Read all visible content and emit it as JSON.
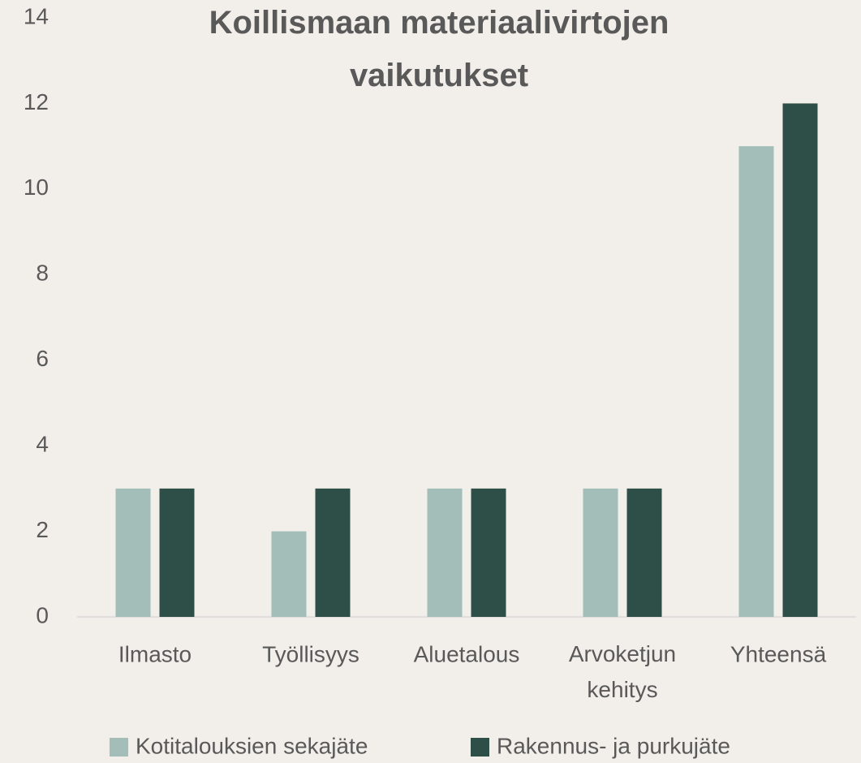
{
  "chart_data": {
    "type": "bar",
    "title": "Koillismaan materiaalivirtojen vaikutukset",
    "categories": [
      "Ilmasto",
      "Työllisyys",
      "Aluetalous",
      "Arvoketjun kehitys",
      "Yhteensä"
    ],
    "series": [
      {
        "name": "Kotitalouksien sekajäte",
        "color": "#a3bdb8",
        "values": [
          3,
          2,
          3,
          3,
          11
        ]
      },
      {
        "name": "Rakennus- ja purkujäte",
        "color": "#2e4f47",
        "values": [
          3,
          3,
          3,
          3,
          12
        ]
      }
    ],
    "ylim": [
      0,
      14
    ],
    "yticks": [
      0,
      2,
      4,
      6,
      8,
      10,
      12,
      14
    ],
    "grid": false,
    "legend": "bottom"
  }
}
